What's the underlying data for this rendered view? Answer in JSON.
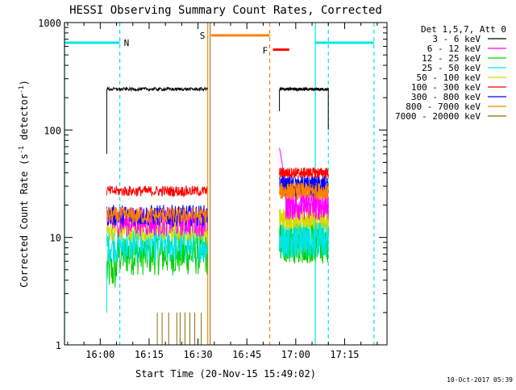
{
  "chart_data": {
    "type": "line",
    "title": "HESSI Observing Summary Count Rates, Corrected",
    "xlabel": "Start Time (20-Nov-15 15:49:02)",
    "ylabel_main": "Corrected Count Rate (s",
    "ylabel_sup1": "-1",
    "ylabel_mid": " detector",
    "ylabel_sup2": "-1",
    "ylabel_end": ")",
    "y_scale": "log",
    "ylim": [
      1,
      1000
    ],
    "xlim": [
      "15:49:02",
      "17:28:00"
    ],
    "x_ticks": [
      "16:00",
      "16:15",
      "16:30",
      "16:45",
      "17:00",
      "17:15"
    ],
    "y_ticks": [
      "1",
      "10",
      "100",
      "1000"
    ],
    "grid": false,
    "legend_title": "Det 1,5,7, Att 0",
    "legend_position": "right",
    "timestamp": "10-Oct-2017 05:39",
    "markers": {
      "night": {
        "label": "N",
        "color": "#00e5e5",
        "spans": [
          [
            "15:49:02",
            "16:06:00"
          ],
          [
            "17:06:00",
            "17:24:00"
          ]
        ],
        "lines": [
          "15:49:02",
          "16:06:00",
          "17:06:00",
          "17:10:00",
          "17:24:00"
        ]
      },
      "saa": {
        "label": "S",
        "color": "#ff8000",
        "span": [
          "16:34:00",
          "16:52:00"
        ],
        "lines": [
          "16:33:00",
          "16:52:00"
        ]
      },
      "flare": {
        "label": "F",
        "color": "#ff0000",
        "span": [
          "16:53:00",
          "16:58:00"
        ]
      }
    },
    "segments": [
      [
        "16:02:00",
        "16:33:00"
      ],
      [
        "16:55:00",
        "17:10:00"
      ]
    ],
    "series": [
      {
        "name": "3 - 6 keV",
        "color": "#000000",
        "levels": [
          240,
          240
        ]
      },
      {
        "name": "6 - 12 keV",
        "color": "#ff00ff",
        "levels": [
          14,
          20
        ]
      },
      {
        "name": "12 - 25 keV",
        "color": "#00d000",
        "levels": [
          7,
          9
        ]
      },
      {
        "name": "25 - 50 keV",
        "color": "#00e5e5",
        "levels": [
          8.5,
          9.5
        ]
      },
      {
        "name": "50 - 100 keV",
        "color": "#d8d800",
        "levels": [
          11.5,
          15
        ]
      },
      {
        "name": "100 - 300 keV",
        "color": "#ff0000",
        "levels": [
          27,
          40
        ]
      },
      {
        "name": "300 - 800 keV",
        "color": "#0000ff",
        "levels": [
          16,
          30
        ]
      },
      {
        "name": "800 - 7000 keV",
        "color": "#ff8000",
        "levels": [
          16,
          27
        ]
      },
      {
        "name": "7000 - 20000 keV",
        "color": "#8b6c00",
        "levels": [
          1,
          1
        ]
      }
    ]
  }
}
